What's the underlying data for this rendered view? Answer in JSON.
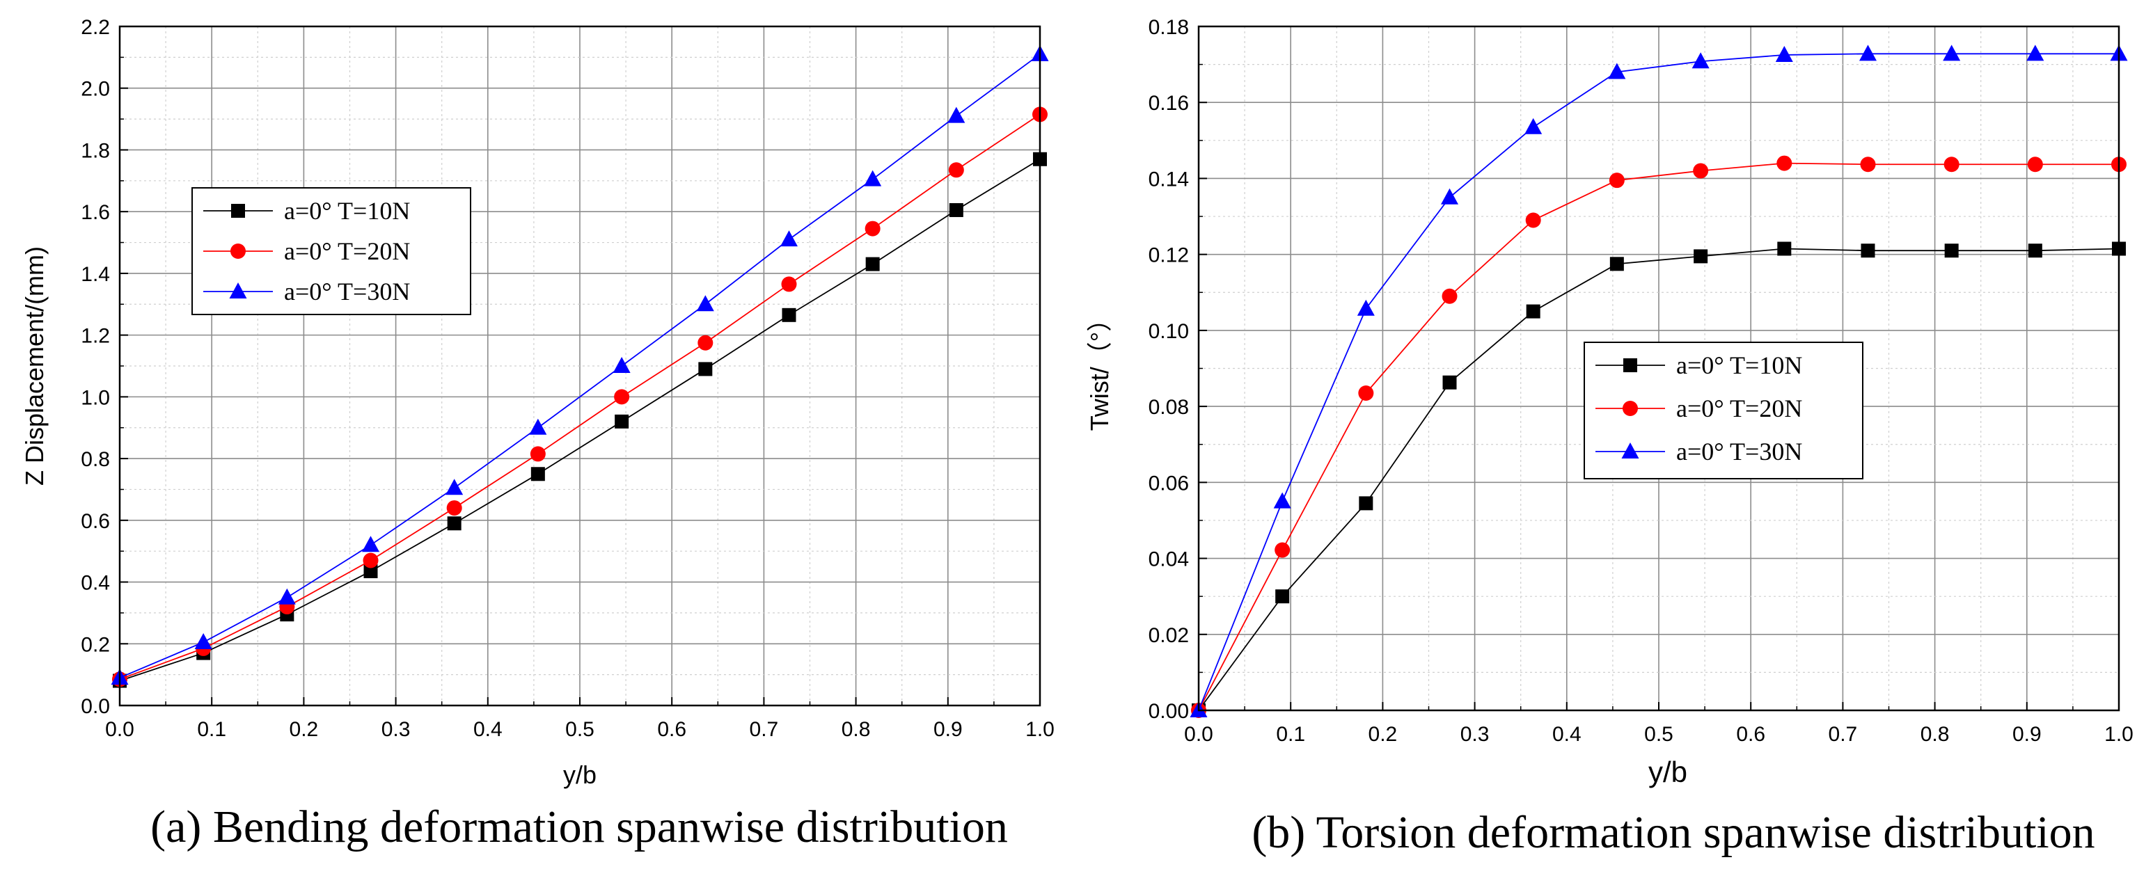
{
  "chart_data": [
    {
      "type": "line",
      "title": "",
      "caption": "(a) Bending deformation spanwise distribution",
      "xlabel": "y/b",
      "ylabel": "Z Displacement/(mm)",
      "xlim": [
        0.0,
        1.0
      ],
      "ylim": [
        0.0,
        2.2
      ],
      "xticks": [
        0.0,
        0.1,
        0.2,
        0.3,
        0.4,
        0.5,
        0.6,
        0.7,
        0.8,
        0.9,
        1.0
      ],
      "xtick_labels": [
        "0.0",
        "0.1",
        "0.2",
        "0.3",
        "0.4",
        "0.5",
        "0.6",
        "0.7",
        "0.8",
        "0.9",
        "1.0"
      ],
      "yticks": [
        0.0,
        0.2,
        0.4,
        0.6,
        0.8,
        1.0,
        1.2,
        1.4,
        1.6,
        1.8,
        2.0,
        2.2
      ],
      "ytick_labels": [
        "0.0",
        "0.2",
        "0.4",
        "0.6",
        "0.8",
        "1.0",
        "1.2",
        "1.4",
        "1.6",
        "1.8",
        "2.0",
        "2.2"
      ],
      "grid": true,
      "legend_position": "upper-left",
      "x": [
        0.0,
        0.0909,
        0.1818,
        0.2727,
        0.3636,
        0.4545,
        0.5455,
        0.6364,
        0.7273,
        0.8182,
        0.9091,
        1.0
      ],
      "series": [
        {
          "name": "a=0° T=10N",
          "color": "#000000",
          "marker": "square",
          "values": [
            0.08,
            0.17,
            0.295,
            0.435,
            0.59,
            0.75,
            0.92,
            1.09,
            1.265,
            1.43,
            1.605,
            1.77
          ]
        },
        {
          "name": "a=0° T=20N",
          "color": "#ff0000",
          "marker": "circle",
          "values": [
            0.085,
            0.185,
            0.32,
            0.47,
            0.64,
            0.815,
            1.0,
            1.175,
            1.365,
            1.545,
            1.735,
            1.915
          ]
        },
        {
          "name": "a=0° T=30N",
          "color": "#0000ff",
          "marker": "triangle",
          "values": [
            0.09,
            0.205,
            0.35,
            0.52,
            0.705,
            0.9,
            1.1,
            1.3,
            1.51,
            1.705,
            1.91,
            2.11
          ]
        }
      ]
    },
    {
      "type": "line",
      "title": "",
      "caption": "(b) Torsion deformation spanwise distribution",
      "xlabel": "y/b",
      "ylabel": "Twist/（°）",
      "xlim": [
        0.0,
        1.0
      ],
      "ylim": [
        0.0,
        0.18
      ],
      "xticks": [
        0.0,
        0.1,
        0.2,
        0.3,
        0.4,
        0.5,
        0.6,
        0.7,
        0.8,
        0.9,
        1.0
      ],
      "xtick_labels": [
        "0.0",
        "0.1",
        "0.2",
        "0.3",
        "0.4",
        "0.5",
        "0.6",
        "0.7",
        "0.8",
        "0.9",
        "1.0"
      ],
      "yticks": [
        0.0,
        0.02,
        0.04,
        0.06,
        0.08,
        0.1,
        0.12,
        0.14,
        0.16,
        0.18
      ],
      "ytick_labels": [
        "0.00",
        "0.02",
        "0.04",
        "0.06",
        "0.08",
        "0.10",
        "0.12",
        "0.14",
        "0.16",
        "0.18"
      ],
      "grid": true,
      "legend_position": "center-right",
      "x": [
        0.0,
        0.0909,
        0.1818,
        0.2727,
        0.3636,
        0.4545,
        0.5455,
        0.6364,
        0.7273,
        0.8182,
        0.9091,
        1.0
      ],
      "series": [
        {
          "name": "a=0° T=10N",
          "color": "#000000",
          "marker": "square",
          "values": [
            0.0,
            0.03,
            0.0545,
            0.0863,
            0.105,
            0.1175,
            0.1195,
            0.1215,
            0.121,
            0.121,
            0.121,
            0.1215
          ]
        },
        {
          "name": "a=0° T=20N",
          "color": "#ff0000",
          "marker": "circle",
          "values": [
            0.0,
            0.0422,
            0.0835,
            0.109,
            0.129,
            0.1395,
            0.142,
            0.144,
            0.1437,
            0.1437,
            0.1437,
            0.1437
          ]
        },
        {
          "name": "a=0° T=30N",
          "color": "#0000ff",
          "marker": "triangle",
          "values": [
            0.0,
            0.055,
            0.1057,
            0.135,
            0.1535,
            0.168,
            0.1708,
            0.1725,
            0.1728,
            0.1728,
            0.1728,
            0.1728
          ]
        }
      ]
    }
  ]
}
